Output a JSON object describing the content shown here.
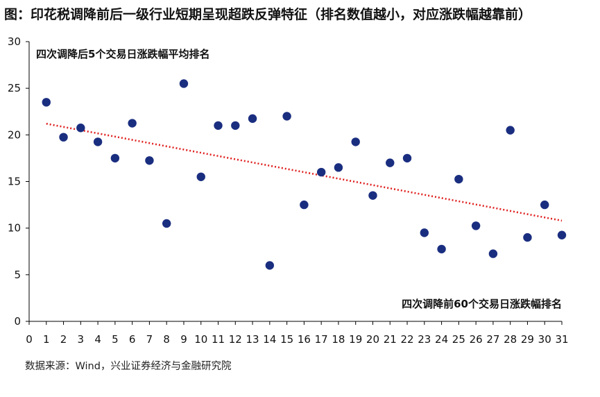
{
  "figure": {
    "title": "图：印花税调降前后一级行业短期呈现超跌反弹特征（排名数值越小，对应涨跌幅越靠前）",
    "source": "数据来源：Wind，兴业证券经济与金融研究院"
  },
  "chart_data": {
    "type": "scatter",
    "title": "图：印花税调降前后一级行业短期呈现超跌反弹特征（排名数值越小，对应涨跌幅越靠前）",
    "xlabel": "四次调降前60个交易日涨跌幅排名",
    "ylabel": "四次调降后5个交易日涨跌幅平均排名",
    "xlim": [
      0,
      31
    ],
    "ylim": [
      0,
      30
    ],
    "xticks": [
      0,
      1,
      2,
      3,
      4,
      5,
      6,
      7,
      8,
      9,
      10,
      11,
      12,
      13,
      14,
      15,
      16,
      17,
      18,
      19,
      20,
      21,
      22,
      23,
      24,
      25,
      26,
      27,
      28,
      29,
      30,
      31
    ],
    "yticks": [
      0,
      5,
      10,
      15,
      20,
      25,
      30
    ],
    "grid": false,
    "colors": {
      "points": "#1a2e80",
      "trendline": "#e02020",
      "axis": "#000000"
    },
    "x": [
      1,
      2,
      3,
      4,
      5,
      6,
      7,
      8,
      9,
      10,
      11,
      12,
      13,
      14,
      15,
      16,
      17,
      18,
      19,
      20,
      21,
      22,
      23,
      24,
      25,
      26,
      27,
      28,
      29,
      30,
      31
    ],
    "y": [
      23.5,
      19.75,
      20.75,
      19.25,
      17.5,
      21.25,
      17.25,
      10.5,
      25.5,
      15.5,
      21,
      21,
      21.75,
      6,
      22,
      12.5,
      16,
      16.5,
      19.25,
      13.5,
      17,
      17.5,
      9.5,
      7.75,
      15.25,
      10.25,
      7.25,
      20.5,
      9,
      12.5,
      9.25
    ],
    "trendline": {
      "style": "dotted",
      "x": [
        1,
        31
      ],
      "y": [
        21.2,
        10.8
      ]
    }
  }
}
